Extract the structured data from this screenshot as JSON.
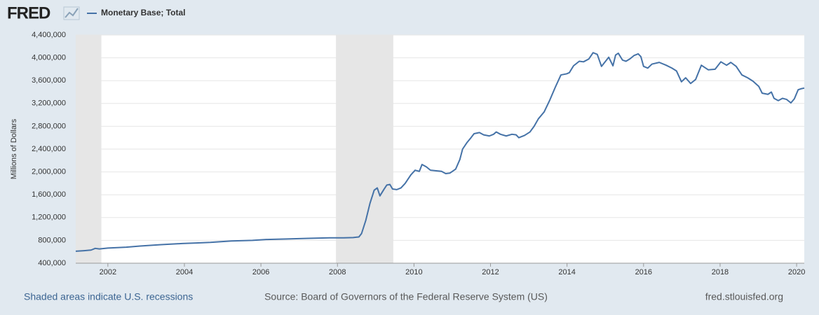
{
  "chart_data": {
    "type": "line",
    "logo": "FRED",
    "y_label": "Millions of Dollars",
    "footer_left": "Shaded areas indicate U.S. recessions",
    "footer_center": "Source: Board of Governors of the Federal Reserve System (US)",
    "footer_right": "fred.stlouisfed.org",
    "xlim": [
      2001.16,
      2020.2
    ],
    "xticks": [
      2002,
      2004,
      2006,
      2008,
      2010,
      2012,
      2014,
      2016,
      2018,
      2020
    ],
    "ylim": [
      400000,
      4400000
    ],
    "yticks": [
      {
        "value": 400000,
        "label": "400,000"
      },
      {
        "value": 800000,
        "label": "800,000"
      },
      {
        "value": 1200000,
        "label": "1,200,000"
      },
      {
        "value": 1600000,
        "label": "1,600,000"
      },
      {
        "value": 2000000,
        "label": "2,000,000"
      },
      {
        "value": 2400000,
        "label": "2,400,000"
      },
      {
        "value": 2800000,
        "label": "2,800,000"
      },
      {
        "value": 3200000,
        "label": "3,200,000"
      },
      {
        "value": 3600000,
        "label": "3,600,000"
      },
      {
        "value": 4000000,
        "label": "4,000,000"
      },
      {
        "value": 4400000,
        "label": "4,400,000"
      }
    ],
    "grid": true,
    "recessions": [
      [
        2001.16,
        2001.83
      ],
      [
        2007.96,
        2009.46
      ]
    ],
    "recession_color": "#e6e6e6",
    "series": [
      {
        "name": "Monetary Base; Total",
        "color": "#4572a7",
        "x": [
          2001.16,
          2001.38,
          2001.56,
          2001.67,
          2001.78,
          2002.0,
          2002.48,
          2002.84,
          2003.39,
          2003.94,
          2004.31,
          2004.68,
          2005.23,
          2005.78,
          2006.14,
          2006.69,
          2007.24,
          2007.79,
          2008.16,
          2008.41,
          2008.56,
          2008.63,
          2008.74,
          2008.85,
          2008.96,
          2009.04,
          2009.11,
          2009.22,
          2009.29,
          2009.37,
          2009.44,
          2009.55,
          2009.66,
          2009.77,
          2009.92,
          2010.03,
          2010.14,
          2010.21,
          2010.32,
          2010.43,
          2010.58,
          2010.72,
          2010.83,
          2010.94,
          2011.09,
          2011.2,
          2011.27,
          2011.38,
          2011.49,
          2011.57,
          2011.71,
          2011.82,
          2011.97,
          2012.08,
          2012.15,
          2012.26,
          2012.41,
          2012.56,
          2012.67,
          2012.74,
          2012.89,
          2013.03,
          2013.14,
          2013.25,
          2013.4,
          2013.55,
          2013.69,
          2013.84,
          2013.99,
          2014.06,
          2014.17,
          2014.32,
          2014.43,
          2014.57,
          2014.68,
          2014.79,
          2014.9,
          2015.09,
          2015.2,
          2015.27,
          2015.34,
          2015.45,
          2015.54,
          2015.64,
          2015.75,
          2015.86,
          2015.93,
          2016.0,
          2016.11,
          2016.22,
          2016.41,
          2016.59,
          2016.74,
          2016.86,
          2016.99,
          2017.1,
          2017.23,
          2017.36,
          2017.51,
          2017.69,
          2017.87,
          2018.02,
          2018.17,
          2018.28,
          2018.42,
          2018.57,
          2018.72,
          2018.86,
          2019.01,
          2019.1,
          2019.25,
          2019.34,
          2019.41,
          2019.52,
          2019.63,
          2019.74,
          2019.85,
          2019.94,
          2020.04,
          2020.13,
          2020.2
        ],
        "values": [
          610000,
          620000,
          630000,
          660000,
          650000,
          665000,
          680000,
          700000,
          725000,
          745000,
          755000,
          765000,
          790000,
          800000,
          815000,
          825000,
          835000,
          845000,
          845000,
          850000,
          860000,
          920000,
          1150000,
          1450000,
          1680000,
          1720000,
          1580000,
          1700000,
          1770000,
          1780000,
          1700000,
          1690000,
          1720000,
          1800000,
          1950000,
          2030000,
          2010000,
          2130000,
          2090000,
          2030000,
          2020000,
          2010000,
          1970000,
          1980000,
          2050000,
          2220000,
          2400000,
          2510000,
          2600000,
          2670000,
          2690000,
          2650000,
          2630000,
          2660000,
          2700000,
          2660000,
          2630000,
          2660000,
          2650000,
          2600000,
          2640000,
          2700000,
          2800000,
          2930000,
          3050000,
          3260000,
          3480000,
          3700000,
          3720000,
          3740000,
          3860000,
          3940000,
          3930000,
          3980000,
          4090000,
          4060000,
          3850000,
          4010000,
          3860000,
          4050000,
          4080000,
          3960000,
          3940000,
          3980000,
          4040000,
          4070000,
          4020000,
          3850000,
          3820000,
          3890000,
          3920000,
          3870000,
          3820000,
          3770000,
          3580000,
          3650000,
          3550000,
          3620000,
          3870000,
          3790000,
          3800000,
          3930000,
          3870000,
          3920000,
          3850000,
          3700000,
          3650000,
          3590000,
          3500000,
          3380000,
          3360000,
          3400000,
          3290000,
          3250000,
          3290000,
          3270000,
          3210000,
          3280000,
          3440000,
          3460000,
          3470000
        ]
      }
    ]
  }
}
